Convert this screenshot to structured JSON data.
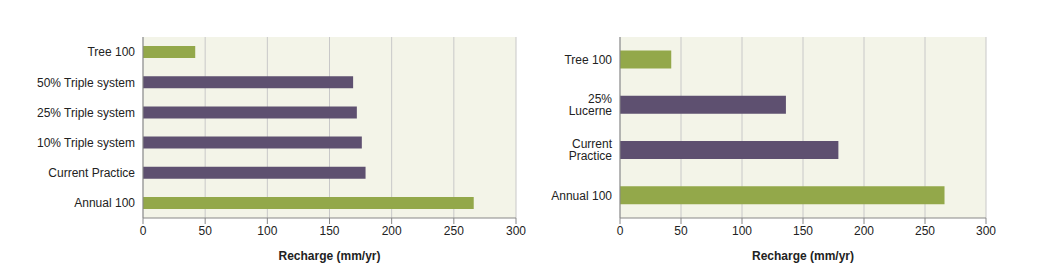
{
  "chart_data": [
    {
      "type": "bar",
      "orientation": "horizontal",
      "grid": true,
      "categories": [
        "Tree 100",
        "50% Triple system",
        "25% Triple system",
        "10% Triple system",
        "Current Practice",
        "Annual 100"
      ],
      "values": [
        42,
        169,
        172,
        176,
        179,
        266
      ],
      "colors": [
        "#93a84a",
        "#5e5070",
        "#5e5070",
        "#5e5070",
        "#5e5070",
        "#93a84a"
      ],
      "x_label": "Recharge (mm/yr)",
      "xlim": [
        0,
        300
      ],
      "xticks": [
        0,
        50,
        100,
        150,
        200,
        250,
        300
      ]
    },
    {
      "type": "bar",
      "orientation": "horizontal",
      "grid": true,
      "categories": [
        "Tree 100",
        "25% Lucerne",
        "Current Practice",
        "Annual 100"
      ],
      "values": [
        42,
        136,
        179,
        266
      ],
      "colors": [
        "#93a84a",
        "#5e5070",
        "#5e5070",
        "#93a84a"
      ],
      "x_label": "Recharge (mm/yr)",
      "xlim": [
        0,
        300
      ],
      "xticks": [
        0,
        50,
        100,
        150,
        200,
        250,
        300
      ]
    }
  ]
}
